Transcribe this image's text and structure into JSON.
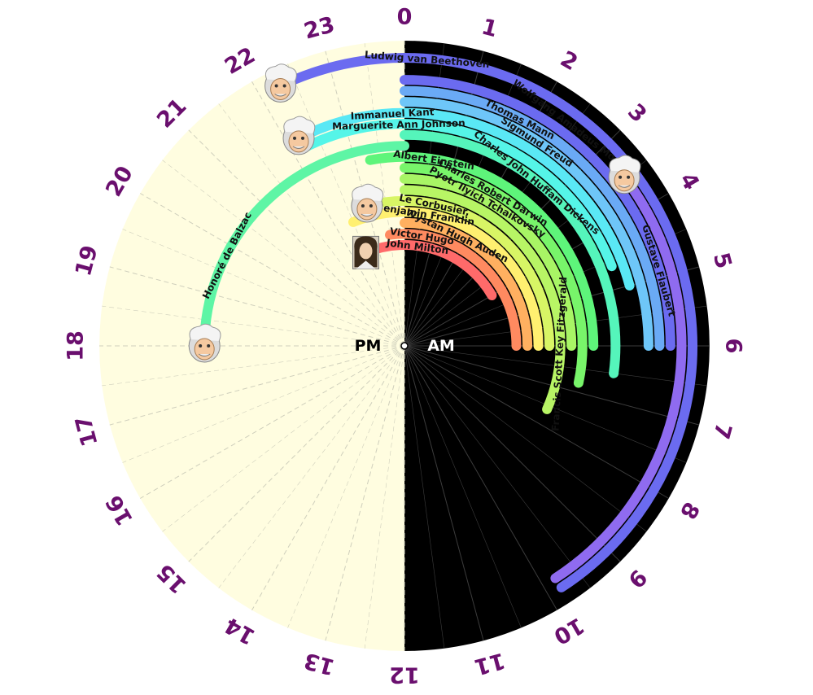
{
  "chart_data": {
    "type": "radial-arc",
    "hours": [
      "0",
      "1",
      "2",
      "3",
      "4",
      "5",
      "6",
      "7",
      "8",
      "9",
      "10",
      "11",
      "12",
      "13",
      "14",
      "15",
      "16",
      "17",
      "18",
      "19",
      "20",
      "21",
      "22",
      "23"
    ],
    "center_labels": {
      "am": "AM",
      "pm": "PM"
    },
    "colors": {
      "night": "#000000",
      "day": "#fffde0",
      "hour_text": "#6a0f6e"
    },
    "series": [
      {
        "name": "Ludwig van Beethoven",
        "start": 22.3,
        "end": 9.8,
        "color": "#6b6bf0",
        "label_hour": 0.3,
        "portrait": true
      },
      {
        "name": "Wolfgang Amadeus Mozart",
        "start": 3.5,
        "end": 9.8,
        "color": "#8f6bf0",
        "label_hour": 2.5,
        "portrait": true
      },
      {
        "name": "Gustave Flaubert",
        "start": 0.0,
        "end": 6.0,
        "color": "#6b6bf0",
        "label_hour": 4.9
      },
      {
        "name": "Thomas Mann",
        "start": 0.0,
        "end": 6.0,
        "color": "#6aaaf5",
        "label_hour": 1.8
      },
      {
        "name": "Sigmund Freud",
        "start": 0.0,
        "end": 6.0,
        "color": "#6ec6f8",
        "label_hour": 2.2
      },
      {
        "name": "Immanuel Kant",
        "start": 22.2,
        "end": 5.0,
        "color": "#5ae8f5",
        "label_hour": 23.8,
        "portrait": true
      },
      {
        "name": "Marguerite Ann Johnson",
        "start": 22.2,
        "end": 4.6,
        "color": "#55f5e8",
        "label_hour": 23.9
      },
      {
        "name": "Charles John Huffam Dickens",
        "start": 0.0,
        "end": 6.5,
        "color": "#55f5bb",
        "label_hour": 2.6
      },
      {
        "name": "Honoré de Balzac",
        "start": 18.0,
        "end": 0.0,
        "color": "#5ef5a5",
        "label_hour": 19.8,
        "portrait": true
      },
      {
        "name": "Albert Einstein",
        "start": 23.3,
        "end": 6.0,
        "color": "#5ef57a",
        "label_hour": 0.6
      },
      {
        "name": "Charles Robert Darwin",
        "start": 0.0,
        "end": 6.8,
        "color": "#78f56a",
        "label_hour": 2.0
      },
      {
        "name": "Pyotr Ilyich Tchaikovsky",
        "start": 0.0,
        "end": 6.0,
        "color": "#a8f565",
        "label_hour": 2.0
      },
      {
        "name": "Francis Scott Key Fitzgerald",
        "start": 0.0,
        "end": 7.6,
        "color": "#b8f565",
        "label_hour": 6.2
      },
      {
        "name": "Le Corbusier,",
        "start": 23.0,
        "end": 6.0,
        "color": "#d8f565",
        "label_hour": 0.8,
        "portrait": true
      },
      {
        "name": "Benjamin Franklin",
        "start": 22.5,
        "end": 6.0,
        "color": "#fff070",
        "label_hour": 0.6
      },
      {
        "name": "Wystan Hugh Auden",
        "start": 0.0,
        "end": 6.0,
        "color": "#ffb060",
        "label_hour": 1.7
      },
      {
        "name": "Victor Hugo",
        "start": 23.5,
        "end": 6.0,
        "color": "#ff8a60",
        "label_hour": 0.6
      },
      {
        "name": "John Milton",
        "start": 22.5,
        "end": 4.0,
        "color": "#ff6a6a",
        "label_hour": 0.5,
        "portrait": true
      }
    ]
  }
}
